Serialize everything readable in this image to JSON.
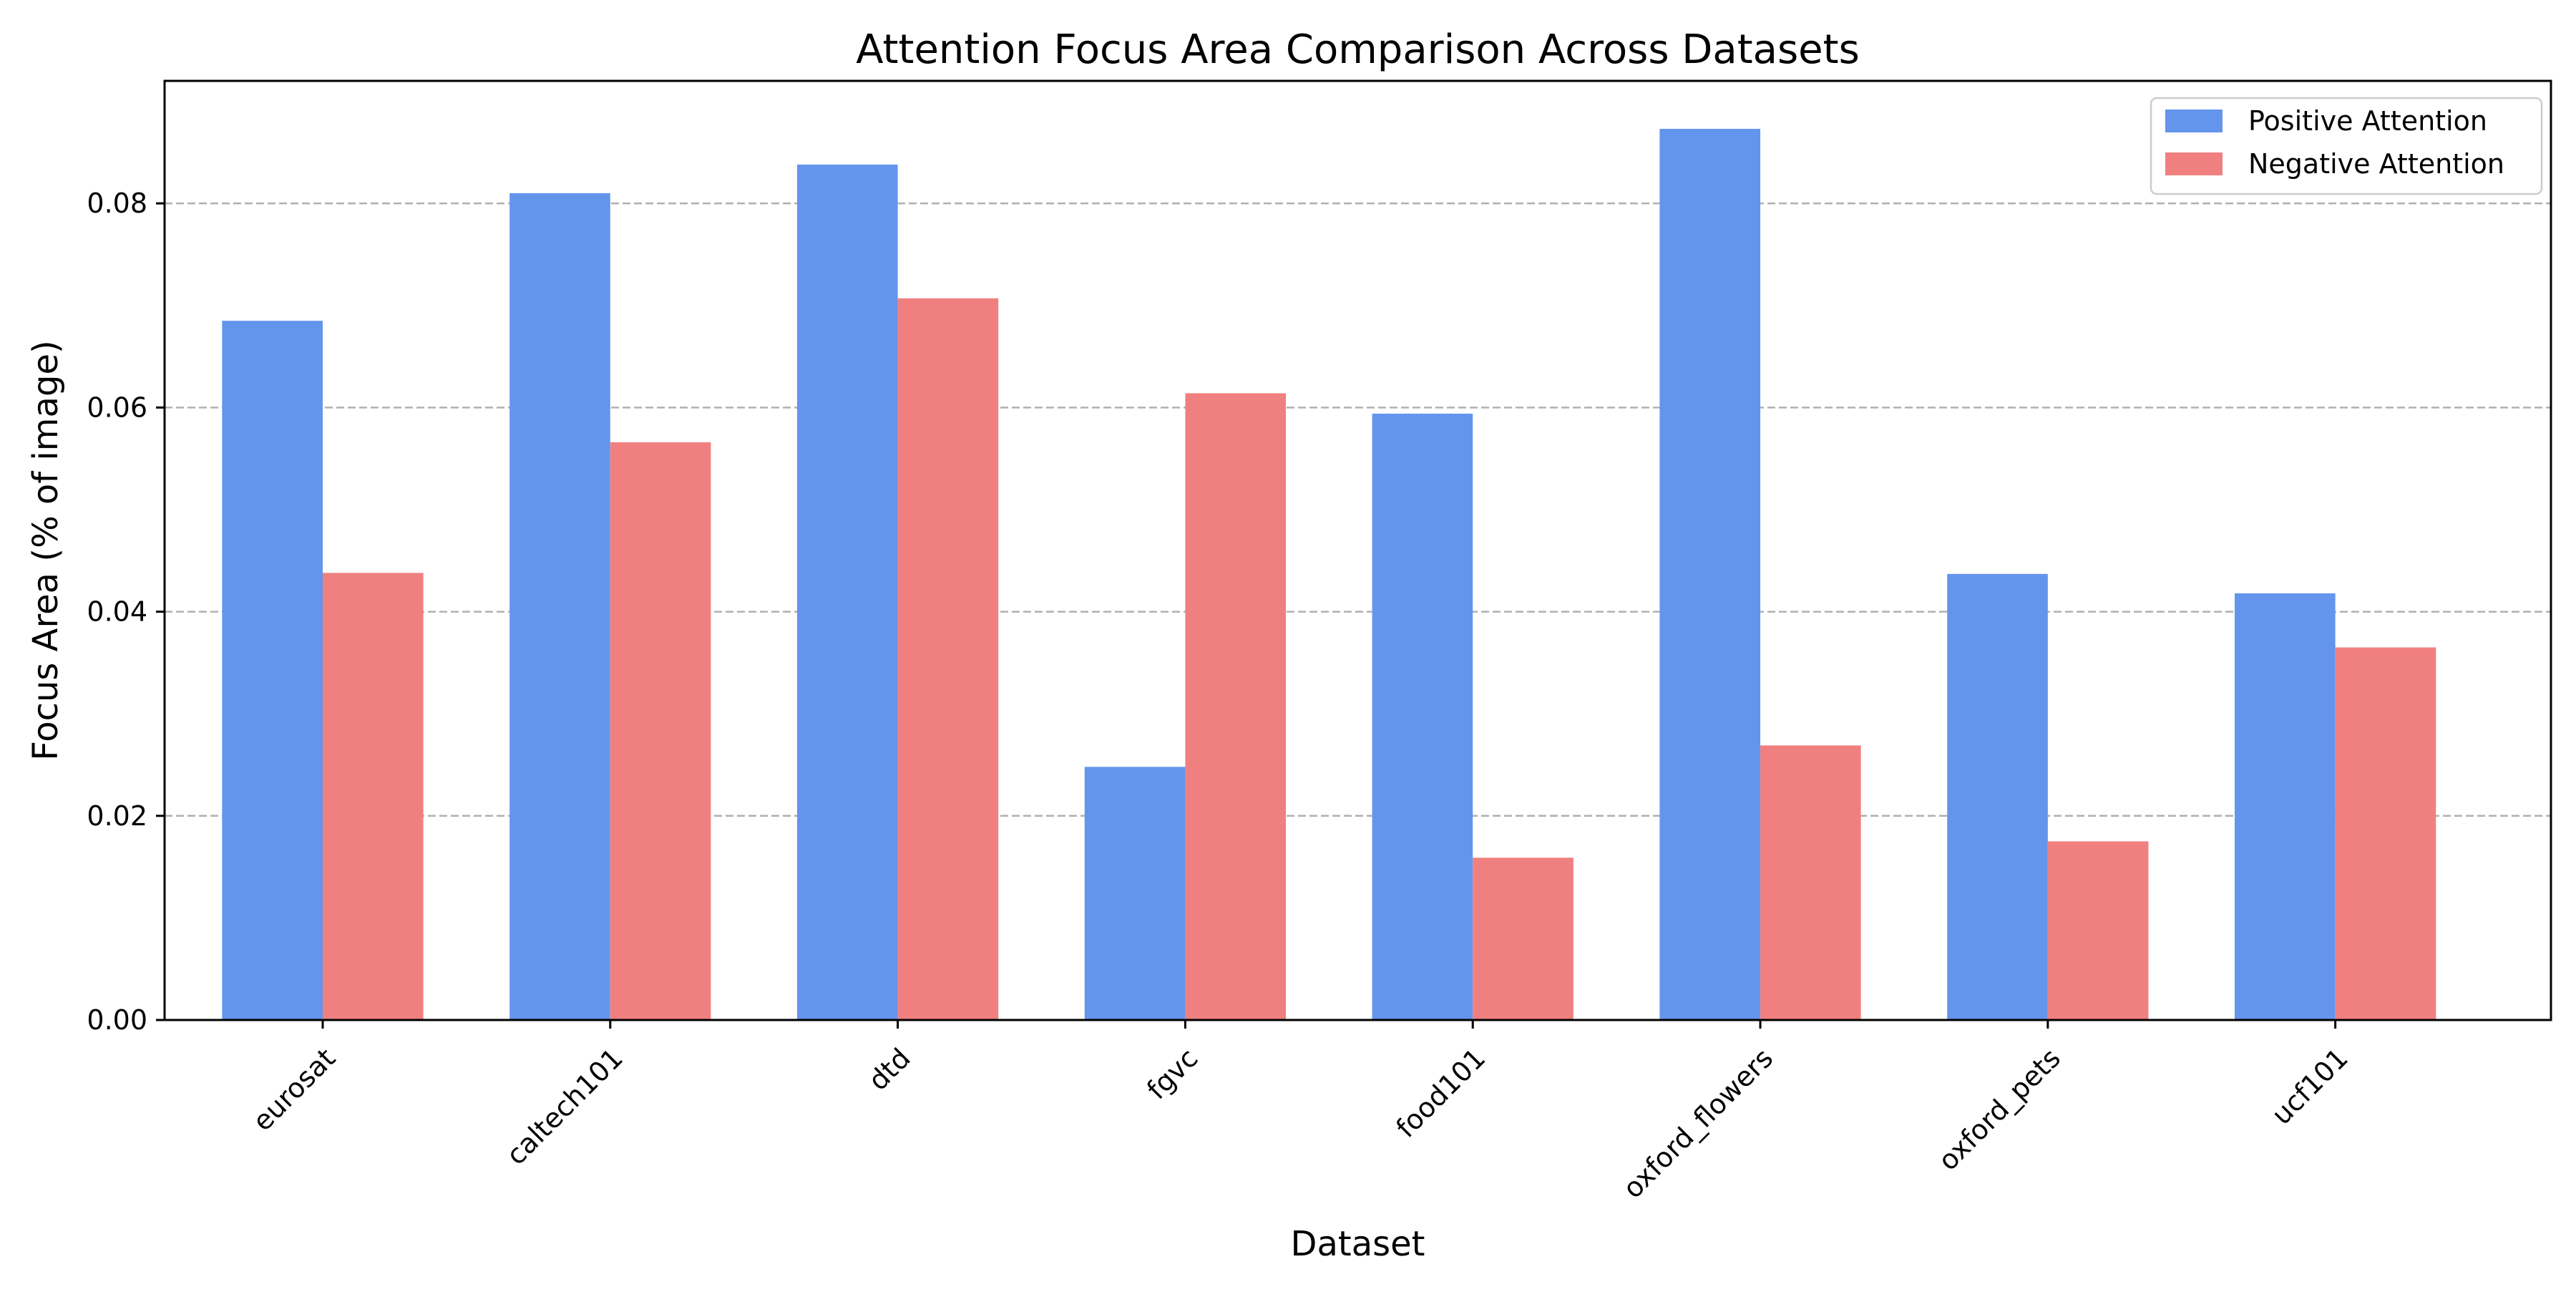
{
  "chart_data": {
    "type": "bar",
    "title": "Attention Focus Area Comparison Across Datasets",
    "xlabel": "Dataset",
    "ylabel": "Focus Area (% of image)",
    "categories": [
      "eurosat",
      "caltech101",
      "dtd",
      "fgvc",
      "food101",
      "oxford_flowers",
      "oxford_pets",
      "ucf101"
    ],
    "series": [
      {
        "name": "Positive Attention",
        "color": "#6495ed",
        "values": [
          0.0685,
          0.081,
          0.0838,
          0.0248,
          0.0594,
          0.0873,
          0.0437,
          0.0418
        ]
      },
      {
        "name": "Negative Attention",
        "color": "#f08080",
        "values": [
          0.0438,
          0.0566,
          0.0707,
          0.0614,
          0.0159,
          0.0269,
          0.0175,
          0.0365
        ]
      }
    ],
    "ylim": [
      0,
      0.092
    ],
    "yticks": [
      0.0,
      0.02,
      0.04,
      0.06,
      0.08
    ],
    "ytick_labels": [
      "0.00",
      "0.02",
      "0.04",
      "0.06",
      "0.08"
    ],
    "grid": "y-dashed",
    "legend_position": "top-right"
  }
}
